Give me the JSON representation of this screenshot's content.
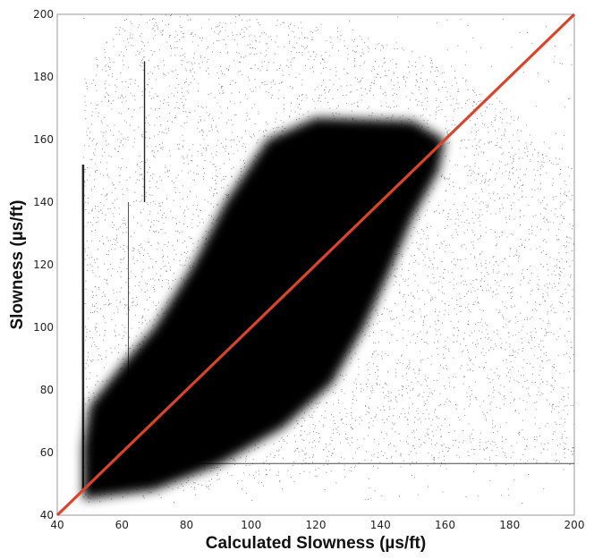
{
  "chart_data": {
    "type": "scatter",
    "title": "",
    "xlabel": "Calculated Slowness (µs/ft)",
    "ylabel": "Slowness (µs/ft)",
    "xlim": [
      40,
      200
    ],
    "ylim": [
      40,
      200
    ],
    "xticks": [
      40,
      60,
      80,
      100,
      120,
      140,
      160,
      180,
      200
    ],
    "yticks": [
      40,
      60,
      80,
      100,
      120,
      140,
      160,
      180,
      200
    ],
    "grid": false,
    "legend": "none",
    "reference_line": {
      "points": [
        [
          40,
          40
        ],
        [
          200,
          200
        ]
      ],
      "color": "#d9452b"
    },
    "point_color": "#000000",
    "dense_region": [
      [
        48,
        45
      ],
      [
        55,
        46
      ],
      [
        70,
        48
      ],
      [
        90,
        56
      ],
      [
        110,
        68
      ],
      [
        125,
        82
      ],
      [
        135,
        100
      ],
      [
        143,
        118
      ],
      [
        150,
        135
      ],
      [
        158,
        150
      ],
      [
        160,
        160
      ],
      [
        150,
        166
      ],
      [
        120,
        167
      ],
      [
        105,
        160
      ],
      [
        92,
        140
      ],
      [
        82,
        120
      ],
      [
        70,
        100
      ],
      [
        60,
        88
      ],
      [
        50,
        75
      ],
      [
        48,
        62
      ]
    ],
    "sparse_region": [
      [
        48,
        44
      ],
      [
        80,
        46
      ],
      [
        130,
        54
      ],
      [
        160,
        56
      ],
      [
        200,
        56
      ],
      [
        200,
        150
      ],
      [
        175,
        175
      ],
      [
        150,
        190
      ],
      [
        100,
        200
      ],
      [
        60,
        200
      ],
      [
        48,
        180
      ]
    ]
  }
}
